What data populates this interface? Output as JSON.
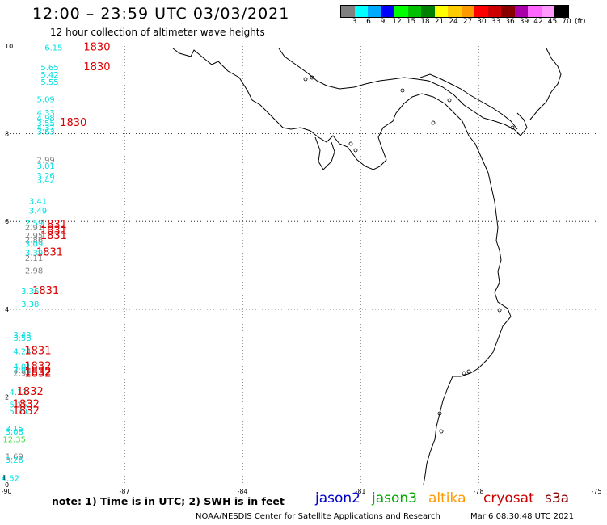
{
  "header": {
    "title": "12:00 – 23:59 UTC 03/03/2021",
    "subtitle": "12 hour collection of altimeter wave heights"
  },
  "colorbar": {
    "labels": [
      "3",
      "6",
      "9",
      "12",
      "15",
      "18",
      "21",
      "24",
      "27",
      "30",
      "33",
      "36",
      "39",
      "42",
      "45",
      "70"
    ],
    "unit": "(ft)",
    "colors": [
      "#808080",
      "#00ffff",
      "#00aaff",
      "#0000ff",
      "#00ff00",
      "#00c000",
      "#008000",
      "#ffff00",
      "#ffcc00",
      "#ff9900",
      "#ff0000",
      "#cc0000",
      "#880000",
      "#aa00aa",
      "#ff66ff",
      "#ff99ff",
      "#000000"
    ]
  },
  "axes": {
    "x_ticks": [
      "-90",
      "-87",
      "-84",
      "-81",
      "-78",
      "-75"
    ],
    "y_ticks": [
      "0",
      "2",
      "4",
      "6",
      "8",
      "10"
    ]
  },
  "observations": [
    {
      "label": "6.15",
      "color": "#00e0e0",
      "lon": -88.8,
      "lat": 9.9
    },
    {
      "label": "5.65",
      "color": "#00e0e0",
      "lon": -88.9,
      "lat": 9.45
    },
    {
      "label": "5.42",
      "color": "#00e0e0",
      "lon": -88.9,
      "lat": 9.28
    },
    {
      "label": "5.55",
      "color": "#00e0e0",
      "lon": -88.9,
      "lat": 9.12
    },
    {
      "label": "5.09",
      "color": "#00e0e0",
      "lon": -89.0,
      "lat": 8.72
    },
    {
      "label": "4.33",
      "color": "#00e0e0",
      "lon": -89.0,
      "lat": 8.42
    },
    {
      "label": "4.98",
      "color": "#00e0e0",
      "lon": -89.0,
      "lat": 8.3
    },
    {
      "label": "3.55",
      "color": "#00e0e0",
      "lon": -89.0,
      "lat": 8.18
    },
    {
      "label": "4.37",
      "color": "#00e0e0",
      "lon": -89.0,
      "lat": 8.08
    },
    {
      "label": "3.63",
      "color": "#00e0e0",
      "lon": -89.0,
      "lat": 7.98
    },
    {
      "label": "2.99",
      "color": "#808080",
      "lon": -89.0,
      "lat": 7.34
    },
    {
      "label": "3.01",
      "color": "#00e0e0",
      "lon": -89.0,
      "lat": 7.2
    },
    {
      "label": "3.26",
      "color": "#00e0e0",
      "lon": -89.0,
      "lat": 6.98
    },
    {
      "label": "3.42",
      "color": "#00e0e0",
      "lon": -89.0,
      "lat": 6.88
    },
    {
      "label": "3.41",
      "color": "#00e0e0",
      "lon": -89.2,
      "lat": 6.4
    },
    {
      "label": "3.49",
      "color": "#00e0e0",
      "lon": -89.2,
      "lat": 6.18
    },
    {
      "label": "2.59",
      "color": "#00e0e0",
      "lon": -89.3,
      "lat": 5.9
    },
    {
      "label": "2.91",
      "color": "#808080",
      "lon": -89.3,
      "lat": 5.8
    },
    {
      "label": "2.95",
      "color": "#808080",
      "lon": -89.3,
      "lat": 5.62
    },
    {
      "label": "2.86",
      "color": "#808080",
      "lon": -89.3,
      "lat": 5.52
    },
    {
      "label": "3.09",
      "color": "#00e0e0",
      "lon": -89.3,
      "lat": 5.42
    },
    {
      "label": "3.39",
      "color": "#00e0e0",
      "lon": -89.3,
      "lat": 5.22
    },
    {
      "label": "2.11",
      "color": "#808080",
      "lon": -89.3,
      "lat": 5.1
    },
    {
      "label": "2.98",
      "color": "#808080",
      "lon": -89.3,
      "lat": 4.82
    },
    {
      "label": "3.36",
      "color": "#00e0e0",
      "lon": -89.4,
      "lat": 4.35
    },
    {
      "label": "3.38",
      "color": "#00e0e0",
      "lon": -89.4,
      "lat": 4.05
    },
    {
      "label": "3.43",
      "color": "#00e0e0",
      "lon": -89.6,
      "lat": 3.35
    },
    {
      "label": "3.58",
      "color": "#00e0e0",
      "lon": -89.6,
      "lat": 3.28
    },
    {
      "label": "4.24",
      "color": "#00e0e0",
      "lon": -89.6,
      "lat": 2.97
    },
    {
      "label": "4.01",
      "color": "#00e0e0",
      "lon": -89.6,
      "lat": 2.62
    },
    {
      "label": "3.91",
      "color": "#00e0e0",
      "lon": -89.6,
      "lat": 2.54
    },
    {
      "label": "2.97",
      "color": "#808080",
      "lon": -89.6,
      "lat": 2.48
    },
    {
      "label": "4.11",
      "color": "#00e0e0",
      "lon": -89.7,
      "lat": 2.04
    },
    {
      "label": "5.15",
      "color": "#00e0e0",
      "lon": -89.7,
      "lat": 1.76
    },
    {
      "label": "5.70",
      "color": "#00e0e0",
      "lon": -89.7,
      "lat": 1.6
    },
    {
      "label": "3.15",
      "color": "#00e0e0",
      "lon": -89.8,
      "lat": 1.22
    },
    {
      "label": "3.08",
      "color": "#00e0e0",
      "lon": -89.8,
      "lat": 1.14
    },
    {
      "label": "12.35",
      "color": "#44dd44",
      "lon": -89.8,
      "lat": 0.97
    },
    {
      "label": "1.69",
      "color": "#808080",
      "lon": -89.8,
      "lat": 0.58
    },
    {
      "label": "3.26",
      "color": "#00e0e0",
      "lon": -89.8,
      "lat": 0.5
    },
    {
      "label": "4.52",
      "color": "#00e0e0",
      "lon": -89.9,
      "lat": 0.08
    }
  ],
  "time_labels": [
    {
      "label": "1830",
      "lon": -87.7,
      "lat": 9.9
    },
    {
      "label": "1830",
      "lon": -87.7,
      "lat": 9.45
    },
    {
      "label": "1830",
      "lon": -88.3,
      "lat": 8.18
    },
    {
      "label": "1831",
      "lon": -88.8,
      "lat": 5.86
    },
    {
      "label": "1831",
      "lon": -88.8,
      "lat": 5.72
    },
    {
      "label": "1831",
      "lon": -88.8,
      "lat": 5.6
    },
    {
      "label": "1831",
      "lon": -88.9,
      "lat": 5.22
    },
    {
      "label": "1831",
      "lon": -89.0,
      "lat": 4.35
    },
    {
      "label": "1831",
      "lon": -89.2,
      "lat": 2.97
    },
    {
      "label": "1832",
      "lon": -89.2,
      "lat": 2.62
    },
    {
      "label": "1832",
      "lon": -89.2,
      "lat": 2.5
    },
    {
      "label": "1832",
      "lon": -89.2,
      "lat": 2.46
    },
    {
      "label": "1832",
      "lon": -89.4,
      "lat": 2.04
    },
    {
      "label": "1832",
      "lon": -89.5,
      "lat": 1.76
    },
    {
      "label": "1832",
      "lon": -89.5,
      "lat": 1.6
    }
  ],
  "footer": {
    "note": "note:  1) Time is in UTC;  2) SWH is in feet",
    "legend": [
      {
        "label": "jason2",
        "color": "#0000cc"
      },
      {
        "label": "jason3",
        "color": "#00aa00"
      },
      {
        "label": "altika",
        "color": "#ff9900"
      },
      {
        "label": "cryosat",
        "color": "#cc0000"
      },
      {
        "label": "s3a",
        "color": "#880000"
      }
    ],
    "credit": "NOAA/NESDIS Center for Satellite Applications and Research",
    "timestamp": "Mar  6 08:30:48 UTC 2021"
  }
}
